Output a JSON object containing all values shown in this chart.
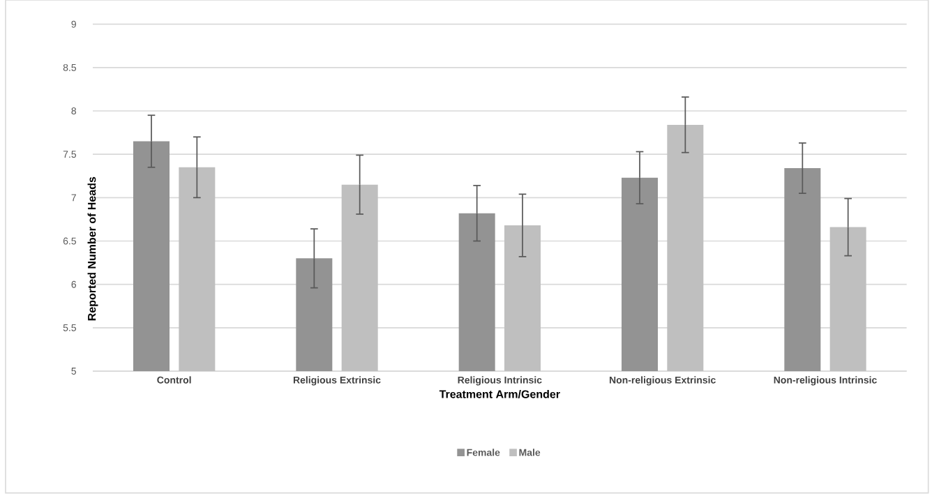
{
  "chart_data": {
    "type": "bar",
    "xlabel": "Treatment Arm/Gender",
    "ylabel": "Reported Number of Heads",
    "categories": [
      "Control",
      "Religious Extrinsic",
      "Religious Intrinsic",
      "Non-religious Extrinsic",
      "Non-religious Intrinsic"
    ],
    "series": [
      {
        "name": "Female",
        "color": "#939393",
        "values": [
          7.65,
          6.3,
          6.82,
          7.23,
          7.34
        ],
        "errors": [
          0.3,
          0.34,
          0.32,
          0.3,
          0.29
        ]
      },
      {
        "name": "Male",
        "color": "#bfbfbf",
        "values": [
          7.35,
          7.15,
          6.68,
          7.84,
          6.66
        ],
        "errors": [
          0.35,
          0.34,
          0.36,
          0.32,
          0.33
        ]
      }
    ],
    "ylim": [
      5,
      9
    ],
    "yticks": [
      5,
      5.5,
      6,
      6.5,
      7,
      7.5,
      8,
      8.5,
      9
    ],
    "grid": "y",
    "legend": "bottom"
  }
}
